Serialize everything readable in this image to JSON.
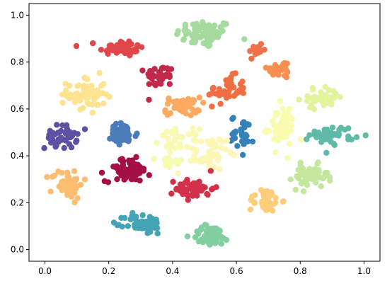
{
  "chart_data": {
    "type": "scatter",
    "title": "",
    "xlabel": "",
    "ylabel": "",
    "xlim": [
      -0.05,
      1.05
    ],
    "ylim": [
      -0.05,
      1.05
    ],
    "grid": false,
    "x_ticks": [
      {
        "value": 0.0,
        "label": "0.0"
      },
      {
        "value": 0.2,
        "label": "0.2"
      },
      {
        "value": 0.4,
        "label": "0.4"
      },
      {
        "value": 0.6,
        "label": "0.6"
      },
      {
        "value": 0.8,
        "label": "0.8"
      },
      {
        "value": 1.0,
        "label": "1.0"
      }
    ],
    "y_ticks": [
      {
        "value": 0.0,
        "label": "0.0"
      },
      {
        "value": 0.2,
        "label": "0.2"
      },
      {
        "value": 0.4,
        "label": "0.4"
      },
      {
        "value": 0.6,
        "label": "0.6"
      },
      {
        "value": 0.8,
        "label": "0.8"
      },
      {
        "value": 1.0,
        "label": "1.0"
      }
    ],
    "colormap": "Spectral",
    "clusters": [
      {
        "cx": 0.5,
        "cy": 0.92,
        "sx": 0.045,
        "sy": 0.03,
        "n": 70,
        "color": "#a6db9f"
      },
      {
        "cx": 0.24,
        "cy": 0.86,
        "sx": 0.035,
        "sy": 0.018,
        "n": 45,
        "color": "#e0474a"
      },
      {
        "cx": 0.66,
        "cy": 0.85,
        "sx": 0.012,
        "sy": 0.02,
        "n": 14,
        "color": "#f0704a"
      },
      {
        "cx": 0.74,
        "cy": 0.77,
        "sx": 0.022,
        "sy": 0.02,
        "n": 30,
        "color": "#f88f52"
      },
      {
        "cx": 0.36,
        "cy": 0.74,
        "sx": 0.022,
        "sy": 0.024,
        "n": 38,
        "color": "#c1284a"
      },
      {
        "cx": 0.57,
        "cy": 0.68,
        "sx": 0.03,
        "sy": 0.03,
        "n": 42,
        "color": "#f16e43"
      },
      {
        "cx": 0.13,
        "cy": 0.66,
        "sx": 0.03,
        "sy": 0.04,
        "n": 60,
        "color": "#fee491"
      },
      {
        "cx": 0.87,
        "cy": 0.65,
        "sx": 0.035,
        "sy": 0.022,
        "n": 35,
        "color": "#e2f39c"
      },
      {
        "cx": 0.43,
        "cy": 0.61,
        "sx": 0.028,
        "sy": 0.02,
        "n": 45,
        "color": "#fdaa60"
      },
      {
        "cx": 0.74,
        "cy": 0.52,
        "sx": 0.022,
        "sy": 0.045,
        "n": 55,
        "color": "#f9fbae"
      },
      {
        "cx": 0.42,
        "cy": 0.47,
        "sx": 0.03,
        "sy": 0.022,
        "n": 30,
        "color": "#f8f9b3"
      },
      {
        "cx": 0.24,
        "cy": 0.49,
        "sx": 0.025,
        "sy": 0.025,
        "n": 45,
        "color": "#4c7bba"
      },
      {
        "cx": 0.62,
        "cy": 0.5,
        "sx": 0.018,
        "sy": 0.035,
        "n": 30,
        "color": "#3581b8"
      },
      {
        "cx": 0.05,
        "cy": 0.48,
        "sx": 0.025,
        "sy": 0.025,
        "n": 45,
        "color": "#5e50a2"
      },
      {
        "cx": 0.9,
        "cy": 0.49,
        "sx": 0.035,
        "sy": 0.02,
        "n": 45,
        "color": "#5fbaa8"
      },
      {
        "cx": 0.52,
        "cy": 0.41,
        "sx": 0.025,
        "sy": 0.035,
        "n": 45,
        "color": "#fdf6b4"
      },
      {
        "cx": 0.39,
        "cy": 0.37,
        "sx": 0.02,
        "sy": 0.015,
        "n": 22,
        "color": "#f6faae"
      },
      {
        "cx": 0.26,
        "cy": 0.34,
        "sx": 0.035,
        "sy": 0.025,
        "n": 70,
        "color": "#a40f44"
      },
      {
        "cx": 0.83,
        "cy": 0.31,
        "sx": 0.028,
        "sy": 0.025,
        "n": 55,
        "color": "#c3e79d"
      },
      {
        "cx": 0.07,
        "cy": 0.28,
        "sx": 0.025,
        "sy": 0.03,
        "n": 55,
        "color": "#fdbd70"
      },
      {
        "cx": 0.47,
        "cy": 0.26,
        "sx": 0.03,
        "sy": 0.022,
        "n": 50,
        "color": "#d23149"
      },
      {
        "cx": 0.69,
        "cy": 0.21,
        "sx": 0.025,
        "sy": 0.025,
        "n": 40,
        "color": "#fecd7b"
      },
      {
        "cx": 0.31,
        "cy": 0.11,
        "sx": 0.03,
        "sy": 0.022,
        "n": 55,
        "color": "#44a3b5"
      },
      {
        "cx": 0.52,
        "cy": 0.06,
        "sx": 0.03,
        "sy": 0.022,
        "n": 65,
        "color": "#82d0a2"
      }
    ]
  }
}
